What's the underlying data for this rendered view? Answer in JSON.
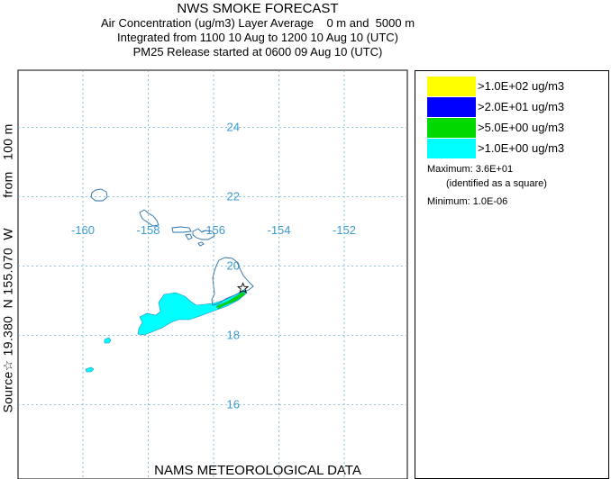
{
  "title": "NWS SMOKE FORECAST",
  "subtitle_lines": [
    "Air Concentration (ug/m3) Layer Average    0 m and  5000 m",
    "Integrated from 1100 10 Aug to 1200 10 Aug 10 (UTC)",
    "PM25 Release started at 0600 09 Aug 10 (UTC)"
  ],
  "side_label": "Source☆ 19.380  N 155.070  W        from   100 m",
  "bottom_label": "NAMS METEOROLOGICAL DATA",
  "legend": {
    "items": [
      {
        "label": ">1.0E+02 ug/m3",
        "color": "#ffff00"
      },
      {
        "label": ">2.0E+01 ug/m3",
        "color": "#0000ff"
      },
      {
        "label": ">5.0E+00 ug/m3",
        "color": "#00d800"
      },
      {
        "label": ">1.0E+00 ug/m3",
        "color": "#00ffff"
      }
    ],
    "maximum_label": "Maximum: 3.6E+01",
    "maximum_note": "(identified as a square)",
    "minimum_label": "Minimum: 1.0E-06"
  },
  "colors": {
    "gridline": "#6aaed6",
    "coastline": "#2a6fa8",
    "plume_outline": "#1a8fc0"
  },
  "chart_data": {
    "type": "map",
    "title": "NWS SMOKE FORECAST",
    "xlabel": "",
    "ylabel": "",
    "longitude_ticks": [
      -160,
      -158,
      -156,
      -154,
      -152
    ],
    "latitude_ticks": [
      16,
      18,
      20,
      22,
      24
    ],
    "xlim": [
      -161.5,
      -150.0
    ],
    "ylim": [
      14.3,
      25.6
    ],
    "grid": true,
    "source": {
      "lat": 19.38,
      "lon": -155.07,
      "height_m": 100
    },
    "plume": [
      {
        "level": ">1.0E+00 ug/m3",
        "lon_range": [
          -158.4,
          -155.1
        ],
        "lat_range": [
          18.1,
          19.4
        ]
      },
      {
        "level": ">5.0E+00 ug/m3",
        "lon_range": [
          -156.1,
          -155.1
        ],
        "lat_range": [
          18.7,
          19.4
        ]
      }
    ],
    "islands": [
      "Kauai",
      "Oahu",
      "Molokai",
      "Lanai",
      "Maui",
      "Kahoolawe",
      "Hawaii"
    ]
  }
}
